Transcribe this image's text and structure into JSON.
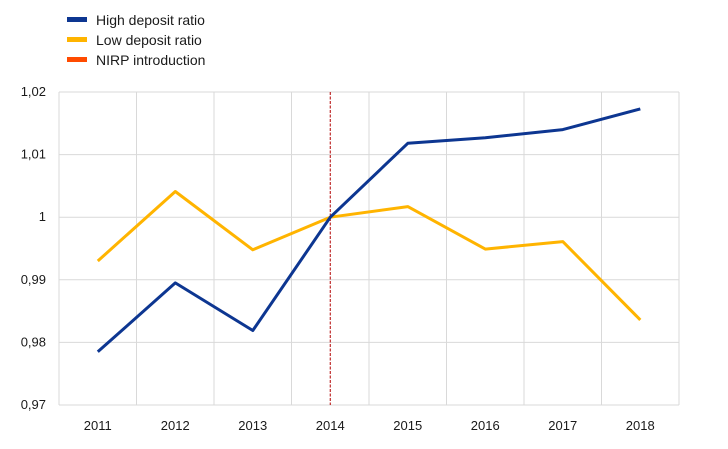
{
  "chart_data": {
    "type": "line",
    "title": "",
    "xlabel": "",
    "ylabel": "",
    "categories": [
      "2011",
      "2012",
      "2013",
      "2014",
      "2015",
      "2016",
      "2017",
      "2018"
    ],
    "ylim": [
      0.97,
      1.02
    ],
    "yticks": [
      0.97,
      0.98,
      0.99,
      1.0,
      1.01,
      1.02
    ],
    "ytick_labels": [
      "0,97",
      "0,98",
      "0,99",
      "1",
      "1,01",
      "1,02"
    ],
    "grid": true,
    "legend_position": "top-left",
    "series": [
      {
        "name": "High deposit ratio",
        "color": "#0d3691",
        "values": [
          0.9785,
          0.9895,
          0.9819,
          1.0,
          1.0118,
          1.0127,
          1.014,
          1.0173
        ]
      },
      {
        "name": "Low deposit ratio",
        "color": "#ffb400",
        "values": [
          0.993,
          1.0041,
          0.9948,
          1.0,
          1.0017,
          0.9949,
          0.9961,
          0.9836
        ]
      }
    ],
    "annotations": [
      {
        "name": "NIRP introduction",
        "type": "vertical-line",
        "x": "2014",
        "color": "#ff4b00",
        "line_color": "#b20000",
        "style": "dashed"
      }
    ]
  }
}
